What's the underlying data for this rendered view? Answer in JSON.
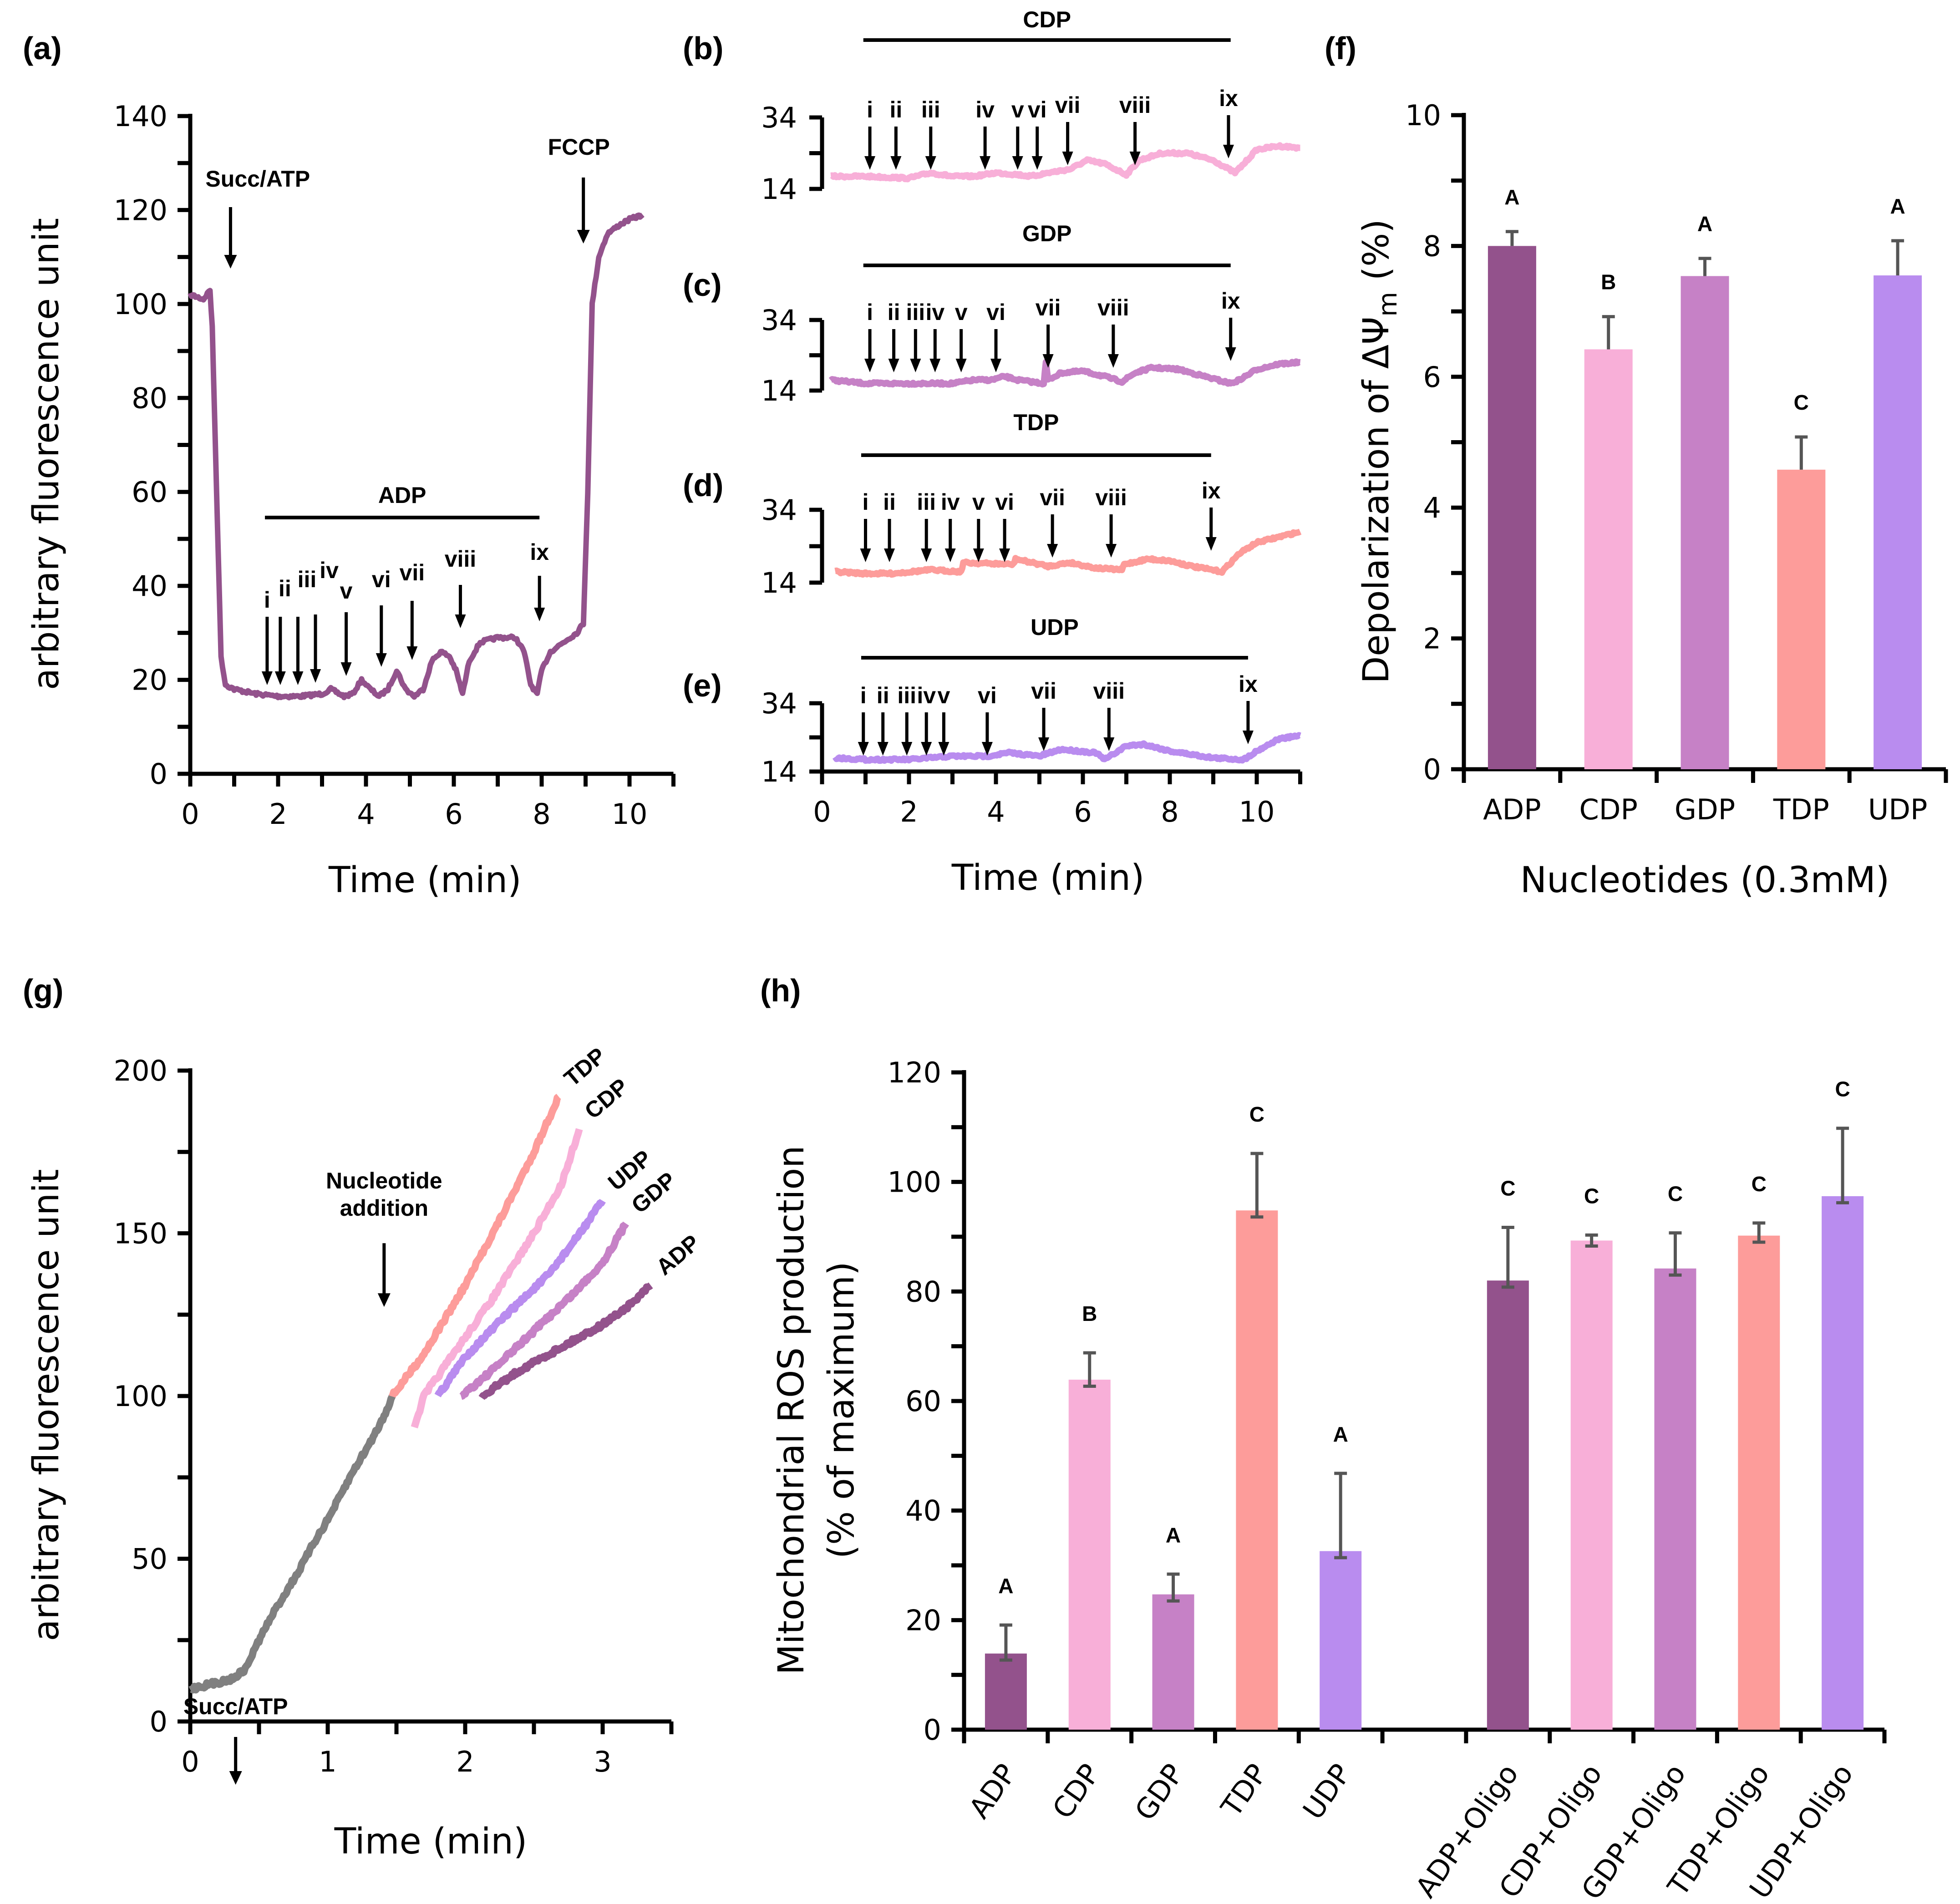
{
  "panel_labels": [
    "(a)",
    "(b)",
    "(c)",
    "(d)",
    "(e)",
    "(f)",
    "(g)",
    "(h)"
  ],
  "colors": {
    "ADP": "#93528c",
    "CDP": "#f8afd8",
    "GDP": "#c681c6",
    "TDP": "#fd9c9a",
    "UDP": "#b98cef",
    "baseline": "#808080",
    "error_bar": "#555555"
  },
  "chart_data": [
    {
      "id": "a",
      "type": "line",
      "panel_label": "(a)",
      "xlabel": "Time (min)",
      "ylabel": "arbitrary fluorescence unit",
      "xlim": [
        0,
        11
      ],
      "ylim": [
        0,
        140
      ],
      "xticks": [
        0,
        2,
        4,
        6,
        8,
        10
      ],
      "yticks": [
        0,
        20,
        40,
        60,
        80,
        100,
        120,
        140
      ],
      "series": [
        {
          "name": "ADP",
          "color": "#93528c",
          "x": [
            0,
            0.3,
            0.45,
            0.5,
            0.6,
            0.7,
            0.8,
            1.0,
            1.5,
            2.0,
            2.5,
            3.0,
            3.2,
            3.5,
            3.7,
            3.9,
            4.1,
            4.3,
            4.5,
            4.7,
            4.9,
            5.1,
            5.3,
            5.5,
            5.7,
            5.9,
            6.05,
            6.2,
            6.35,
            6.6,
            7.0,
            7.4,
            7.6,
            7.75,
            7.9,
            8.0,
            8.2,
            8.5,
            8.8,
            8.95,
            9.05,
            9.15,
            9.3,
            9.5,
            9.8,
            10.0,
            10.3
          ],
          "y": [
            102,
            101,
            103,
            95,
            60,
            25,
            19,
            18,
            17,
            16.5,
            16.5,
            17,
            18,
            16.5,
            17,
            20,
            18,
            16.5,
            18,
            22,
            18,
            16.5,
            18,
            24,
            26,
            25,
            22,
            17,
            24,
            28,
            29,
            29,
            26,
            19,
            17,
            22,
            26,
            28,
            30,
            32,
            60,
            100,
            110,
            115,
            117,
            118,
            119
          ]
        },
        {
          "name": "annotation-bar-ADP",
          "color": "#000000",
          "x": [],
          "y": []
        }
      ],
      "annotations": {
        "succ_atp": {
          "label": "Succ/ATP",
          "x": 0.45
        },
        "fccp": {
          "label": "FCCP",
          "x": 8.95
        },
        "nucleotide_bar": {
          "label": "ADP",
          "x_start": 1.7,
          "x_end": 7.95
        },
        "arrows": [
          {
            "label": "i",
            "x": 1.75
          },
          {
            "label": "ii",
            "x": 2.05
          },
          {
            "label": "iii",
            "x": 2.45
          },
          {
            "label": "iv",
            "x": 2.85
          },
          {
            "label": "v",
            "x": 3.55
          },
          {
            "label": "vi",
            "x": 4.35
          },
          {
            "label": "vii",
            "x": 5.05
          },
          {
            "label": "viii",
            "x": 6.15
          },
          {
            "label": "ix",
            "x": 7.95
          }
        ]
      }
    },
    {
      "id": "b",
      "type": "line",
      "panel_label": "(b)",
      "xlim": [
        0,
        11
      ],
      "ylim": [
        14,
        34
      ],
      "yticks": [
        14,
        34
      ],
      "series": [
        {
          "name": "CDP",
          "color": "#f8afd8",
          "x": [
            0.2,
            1.0,
            2.0,
            2.5,
            3.0,
            3.5,
            4.0,
            4.5,
            4.8,
            5.2,
            5.7,
            6.1,
            6.5,
            7.0,
            7.3,
            7.8,
            8.4,
            9.0,
            9.5,
            9.7,
            10.0,
            10.5,
            11.0
          ],
          "y": [
            17.5,
            17.5,
            17,
            18.5,
            17.5,
            17.5,
            18.5,
            18,
            17.5,
            18.5,
            19.5,
            22,
            21,
            18,
            22,
            24,
            24,
            22,
            18.5,
            21,
            25,
            26,
            25.5
          ]
        }
      ],
      "annotations": {
        "nucleotide_bar": {
          "label": "CDP",
          "x_start": 0.95,
          "x_end": 9.4
        },
        "arrows": [
          {
            "label": "i",
            "x": 1.1
          },
          {
            "label": "ii",
            "x": 1.7
          },
          {
            "label": "iii",
            "x": 2.5
          },
          {
            "label": "iv",
            "x": 3.75
          },
          {
            "label": "v",
            "x": 4.5
          },
          {
            "label": "vi",
            "x": 4.95
          },
          {
            "label": "vii",
            "x": 5.65
          },
          {
            "label": "viii",
            "x": 7.2
          },
          {
            "label": "ix",
            "x": 9.35
          }
        ]
      }
    },
    {
      "id": "c",
      "type": "line",
      "panel_label": "(c)",
      "xlim": [
        0,
        11
      ],
      "ylim": [
        14,
        34
      ],
      "yticks": [
        14,
        34
      ],
      "series": [
        {
          "name": "GDP",
          "color": "#c681c6",
          "x": [
            0.2,
            1.0,
            2.0,
            3.0,
            3.5,
            3.9,
            4.2,
            4.5,
            5.1,
            5.15,
            5.2,
            5.5,
            6.0,
            6.5,
            6.9,
            7.2,
            7.6,
            8.2,
            8.8,
            9.4,
            9.6,
            10.0,
            10.5,
            11.0
          ],
          "y": [
            17,
            16,
            16,
            16,
            17,
            17,
            18,
            17,
            16,
            22,
            17,
            19,
            19.5,
            18,
            16.5,
            19,
            20.5,
            20,
            18,
            16,
            17,
            20,
            21.5,
            22
          ]
        }
      ],
      "annotations": {
        "nucleotide_bar": {
          "label": "GDP",
          "x_start": 0.95,
          "x_end": 9.4
        },
        "arrows": [
          {
            "label": "i",
            "x": 1.1
          },
          {
            "label": "ii",
            "x": 1.65
          },
          {
            "label": "iii",
            "x": 2.15
          },
          {
            "label": "iv",
            "x": 2.6
          },
          {
            "label": "v",
            "x": 3.2
          },
          {
            "label": "vi",
            "x": 4.0
          },
          {
            "label": "vii",
            "x": 5.2
          },
          {
            "label": "viii",
            "x": 6.7
          },
          {
            "label": "ix",
            "x": 9.4
          }
        ]
      }
    },
    {
      "id": "d",
      "type": "line",
      "panel_label": "(d)",
      "xlim": [
        0,
        11
      ],
      "ylim": [
        14,
        34
      ],
      "yticks": [
        14,
        34
      ],
      "series": [
        {
          "name": "TDP",
          "color": "#fd9c9a",
          "x": [
            0.3,
            1.0,
            1.6,
            2.5,
            3.2,
            3.25,
            4.4,
            4.45,
            5.2,
            5.7,
            6.3,
            6.9,
            6.95,
            7.5,
            8.0,
            8.5,
            9.2,
            9.6,
            10.0,
            10.5,
            11.0
          ],
          "y": [
            17,
            16.5,
            16.5,
            17.5,
            17,
            19.5,
            19,
            20.5,
            18.5,
            19.5,
            18,
            17.5,
            19,
            20.5,
            20,
            18.5,
            17,
            22,
            25,
            26.5,
            28
          ]
        }
      ],
      "annotations": {
        "nucleotide_bar": {
          "label": "TDP",
          "x_start": 0.9,
          "x_end": 8.95
        },
        "arrows": [
          {
            "label": "i",
            "x": 1.0
          },
          {
            "label": "ii",
            "x": 1.55
          },
          {
            "label": "iii",
            "x": 2.4
          },
          {
            "label": "iv",
            "x": 2.95
          },
          {
            "label": "v",
            "x": 3.6
          },
          {
            "label": "vi",
            "x": 4.2
          },
          {
            "label": "vii",
            "x": 5.3
          },
          {
            "label": "viii",
            "x": 6.65
          },
          {
            "label": "ix",
            "x": 8.95
          }
        ]
      }
    },
    {
      "id": "e",
      "type": "line",
      "panel_label": "(e)",
      "xlabel": "Time (min)",
      "xlim": [
        0,
        11
      ],
      "ylim": [
        14,
        34
      ],
      "xticks": [
        0,
        2,
        4,
        6,
        8,
        10
      ],
      "yticks": [
        14,
        34
      ],
      "series": [
        {
          "name": "UDP",
          "color": "#b98cef",
          "x": [
            0.3,
            1.0,
            2.0,
            3.0,
            3.8,
            4.3,
            5.0,
            5.5,
            6.3,
            6.5,
            7.0,
            7.4,
            8.0,
            9.0,
            9.7,
            10.0,
            10.5,
            11.0
          ],
          "y": [
            18,
            17.5,
            17.5,
            18.5,
            18.5,
            19.5,
            18.5,
            20.5,
            19.5,
            17.5,
            21.5,
            22,
            20,
            18,
            17.5,
            20,
            23.5,
            24.5
          ]
        }
      ],
      "annotations": {
        "nucleotide_bar": {
          "label": "UDP",
          "x_start": 0.9,
          "x_end": 9.8
        },
        "arrows": [
          {
            "label": "i",
            "x": 0.95
          },
          {
            "label": "ii",
            "x": 1.4
          },
          {
            "label": "iii",
            "x": 1.95
          },
          {
            "label": "iv",
            "x": 2.4
          },
          {
            "label": "v",
            "x": 2.8
          },
          {
            "label": "vi",
            "x": 3.8
          },
          {
            "label": "vii",
            "x": 5.1
          },
          {
            "label": "viii",
            "x": 6.6
          },
          {
            "label": "ix",
            "x": 9.8
          }
        ]
      }
    },
    {
      "id": "f",
      "type": "bar",
      "panel_label": "(f)",
      "xlabel": "Nucleotides (0.3mM)",
      "ylabel": "Depolarization of ΔΨ",
      "ylabel_subscript": "m",
      "ylabel_suffix": " (%)",
      "ylim": [
        0,
        10
      ],
      "yticks": [
        0,
        2,
        4,
        6,
        8,
        10
      ],
      "categories": [
        "ADP",
        "CDP",
        "GDP",
        "TDP",
        "UDP"
      ],
      "values": [
        8.0,
        6.42,
        7.54,
        4.58,
        7.55
      ],
      "errors": [
        0.22,
        0.5,
        0.27,
        0.5,
        0.53
      ],
      "significance": [
        "A",
        "B",
        "A",
        "C",
        "A"
      ]
    },
    {
      "id": "g",
      "type": "line",
      "panel_label": "(g)",
      "xlabel": "Time (min)",
      "ylabel": "arbitrary fluorescence unit",
      "xlim": [
        0,
        3.5
      ],
      "ylim": [
        0,
        200
      ],
      "xticks": [
        0,
        1,
        2,
        3
      ],
      "yticks": [
        0,
        50,
        100,
        150,
        200
      ],
      "series": [
        {
          "name": "Baseline",
          "color": "#808080",
          "x": [
            0,
            0.1,
            0.2,
            0.3,
            0.4,
            0.5,
            0.6,
            0.7,
            0.8,
            0.9,
            1.0,
            1.1,
            1.2,
            1.3,
            1.4,
            1.47
          ],
          "y": [
            10,
            11,
            12,
            13,
            16,
            25,
            33,
            40,
            47,
            55,
            62,
            70,
            78,
            85,
            93,
            100
          ]
        },
        {
          "name": "TDP",
          "color": "#fd9c9a",
          "x": [
            1.47,
            1.7,
            2.0,
            2.3,
            2.5,
            2.68
          ],
          "y": [
            100,
            113,
            134,
            158,
            175,
            192
          ]
        },
        {
          "name": "CDP",
          "color": "#f8afd8",
          "x": [
            1.63,
            1.7,
            1.9,
            2.2,
            2.5,
            2.7,
            2.83
          ],
          "y": [
            90,
            100,
            112,
            130,
            150,
            165,
            182
          ]
        },
        {
          "name": "UDP",
          "color": "#b98cef",
          "x": [
            1.8,
            2.0,
            2.3,
            2.6,
            2.8,
            3.0
          ],
          "y": [
            100,
            112,
            125,
            137,
            148,
            160
          ]
        },
        {
          "name": "GDP",
          "color": "#c681c6",
          "x": [
            1.97,
            2.2,
            2.5,
            2.8,
            3.0,
            3.17
          ],
          "y": [
            100,
            108,
            120,
            132,
            141,
            153
          ]
        },
        {
          "name": "ADP",
          "color": "#93528c",
          "x": [
            2.12,
            2.4,
            2.7,
            3.0,
            3.2,
            3.35
          ],
          "y": [
            100,
            108,
            115,
            122,
            128,
            134
          ]
        }
      ],
      "annotations": {
        "succ_atp": {
          "label": "Succ/ATP",
          "x": 0.33,
          "y": 40
        },
        "nucleotide_addition": {
          "label": [
            "Nucleotide",
            "addition"
          ],
          "x": 1.41,
          "y": 112
        },
        "end_labels": [
          "TDP",
          "CDP",
          "UDP",
          "GDP",
          "ADP"
        ]
      }
    },
    {
      "id": "h",
      "type": "bar",
      "panel_label": "(h)",
      "ylabel": [
        "Mitochondrial ROS production",
        "(% of maximum)"
      ],
      "ylim": [
        0,
        120
      ],
      "yticks": [
        0,
        20,
        40,
        60,
        80,
        100,
        120
      ],
      "categories": [
        "ADP",
        "CDP",
        "GDP",
        "TDP",
        "UDP",
        "",
        "ADP+Oligo",
        "CDP+Oligo",
        "GDP+Oligo",
        "TDP+Oligo",
        "UDP+Oligo"
      ],
      "values": [
        13.9,
        63.9,
        24.7,
        94.8,
        32.6,
        null,
        82.0,
        89.3,
        84.2,
        90.2,
        97.4
      ],
      "errors": [
        5.2,
        4.9,
        3.7,
        10.4,
        14.2,
        null,
        9.7,
        1.0,
        6.5,
        2.3,
        12.4
      ],
      "significance": [
        "A",
        "B",
        "A",
        "C",
        "A",
        "",
        "C",
        "C",
        "C",
        "C",
        "C"
      ],
      "bar_colors": [
        "#93528c",
        "#f8afd8",
        "#c681c6",
        "#fd9c9a",
        "#b98cef",
        null,
        "#93528c",
        "#f8afd8",
        "#c681c6",
        "#fd9c9a",
        "#b98cef"
      ]
    }
  ]
}
